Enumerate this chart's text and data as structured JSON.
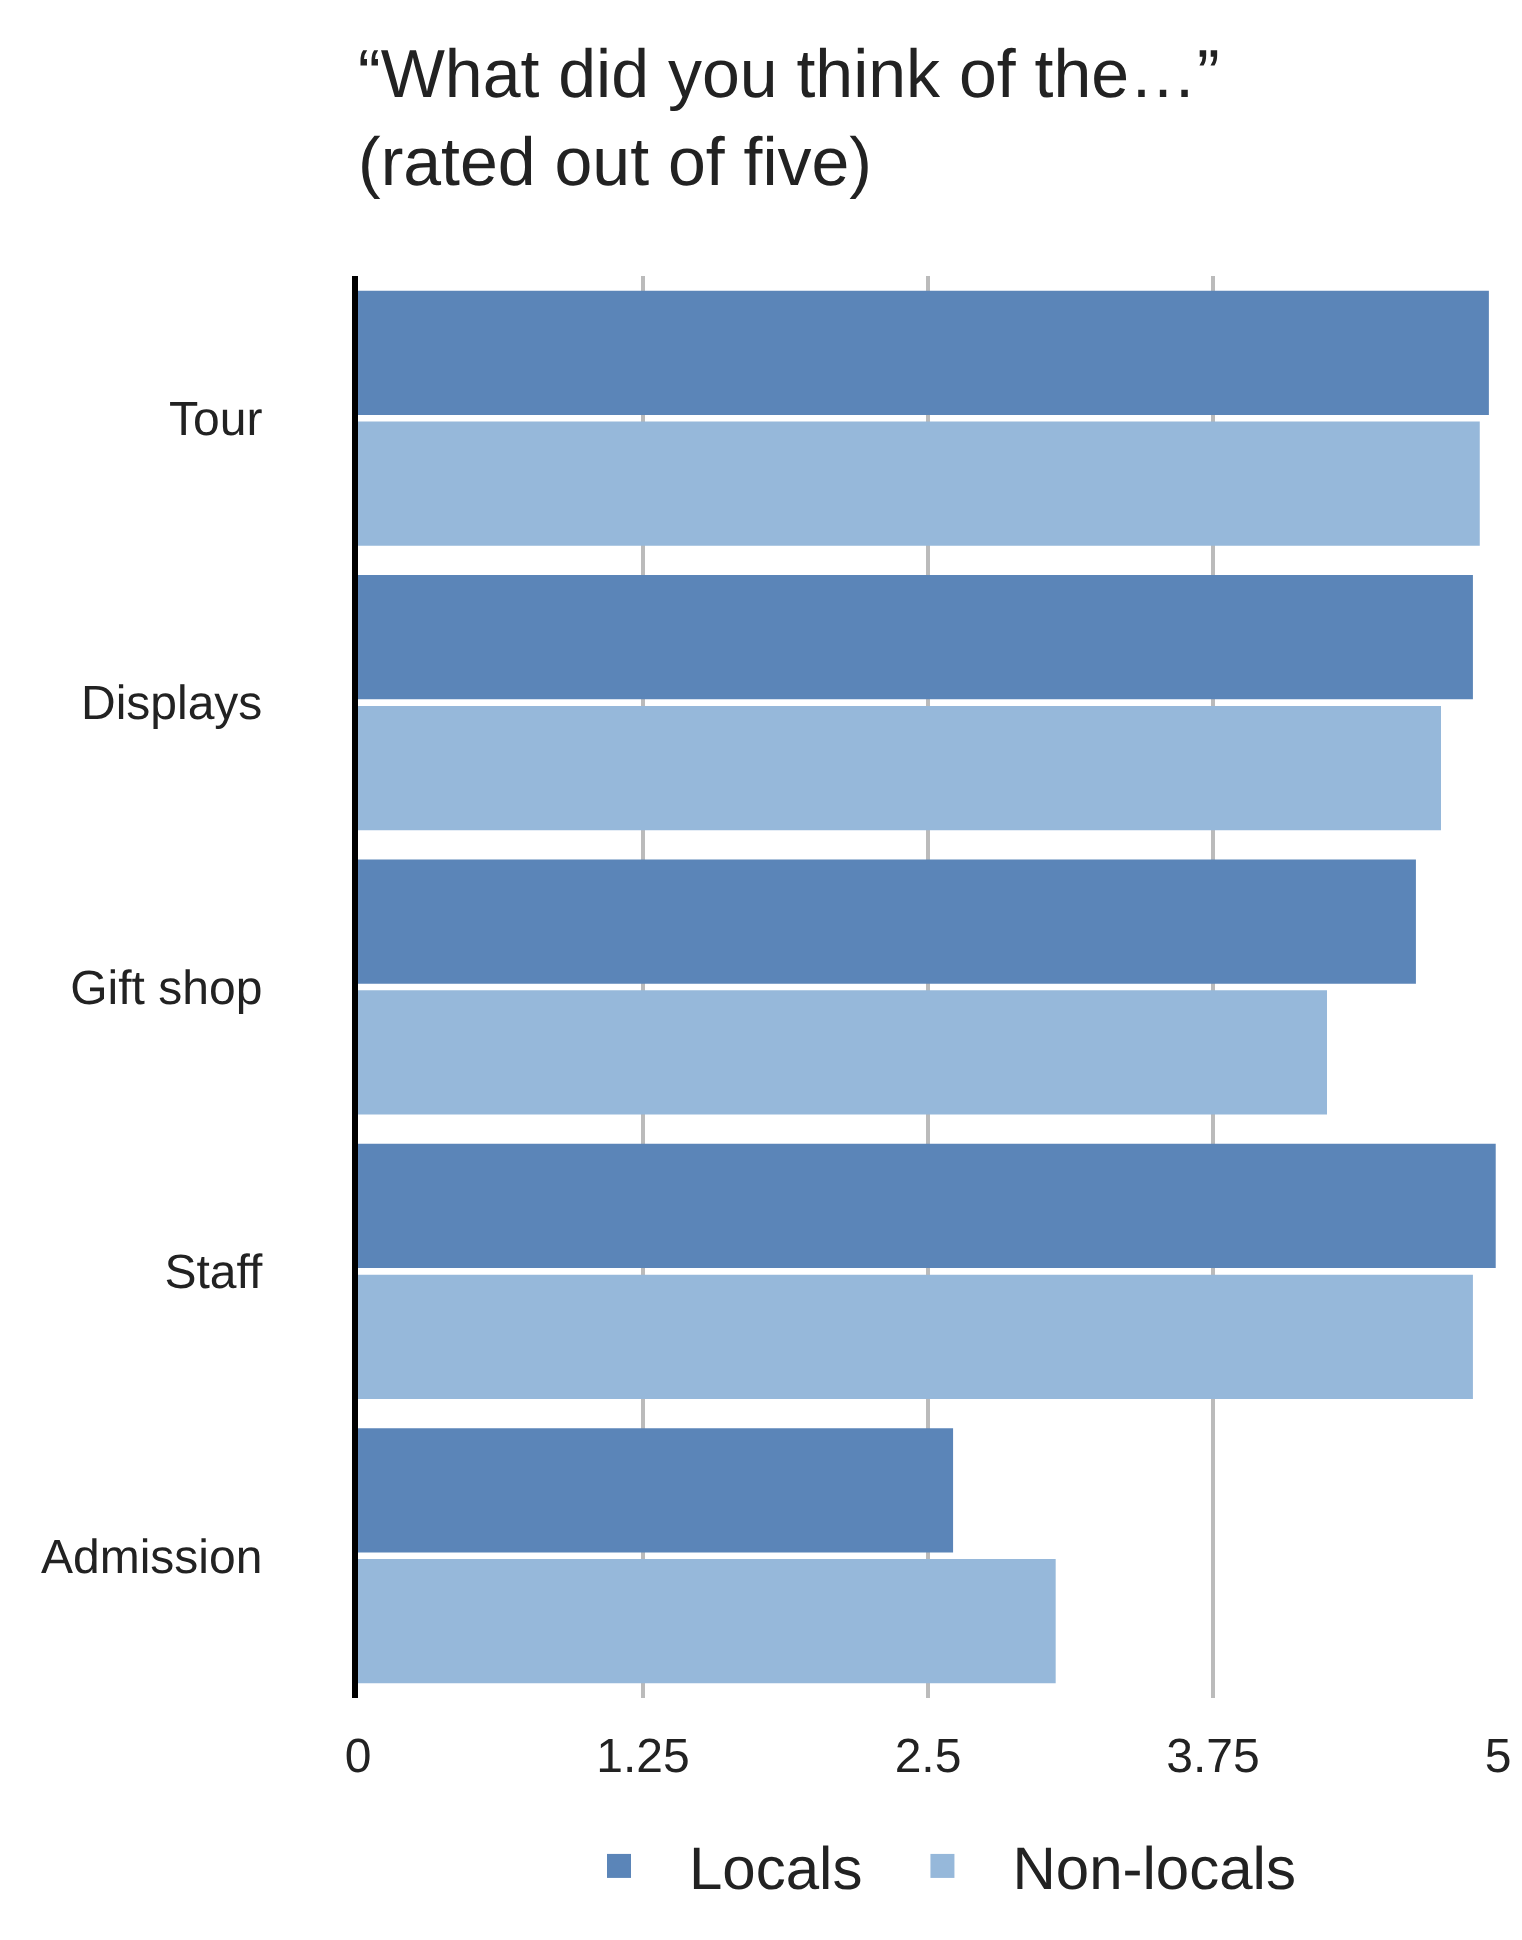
{
  "chart_data": {
    "type": "bar",
    "orientation": "horizontal",
    "title": "“What did you think of the…”\n(rated out of five)",
    "categories": [
      "Tour",
      "Displays",
      "Gift shop",
      "Staff",
      "Admission"
    ],
    "series": [
      {
        "name": "Locals",
        "color": "#5b85b8",
        "values": [
          4.96,
          4.89,
          4.64,
          4.99,
          2.61
        ]
      },
      {
        "name": "Non-locals",
        "color": "#96b8da",
        "values": [
          4.92,
          4.75,
          4.25,
          4.89,
          3.06
        ]
      }
    ],
    "xlim": [
      0,
      5
    ],
    "xticks": [
      0,
      1.25,
      2.5,
      3.75,
      5
    ],
    "grid": "x",
    "legend": "bottom"
  }
}
